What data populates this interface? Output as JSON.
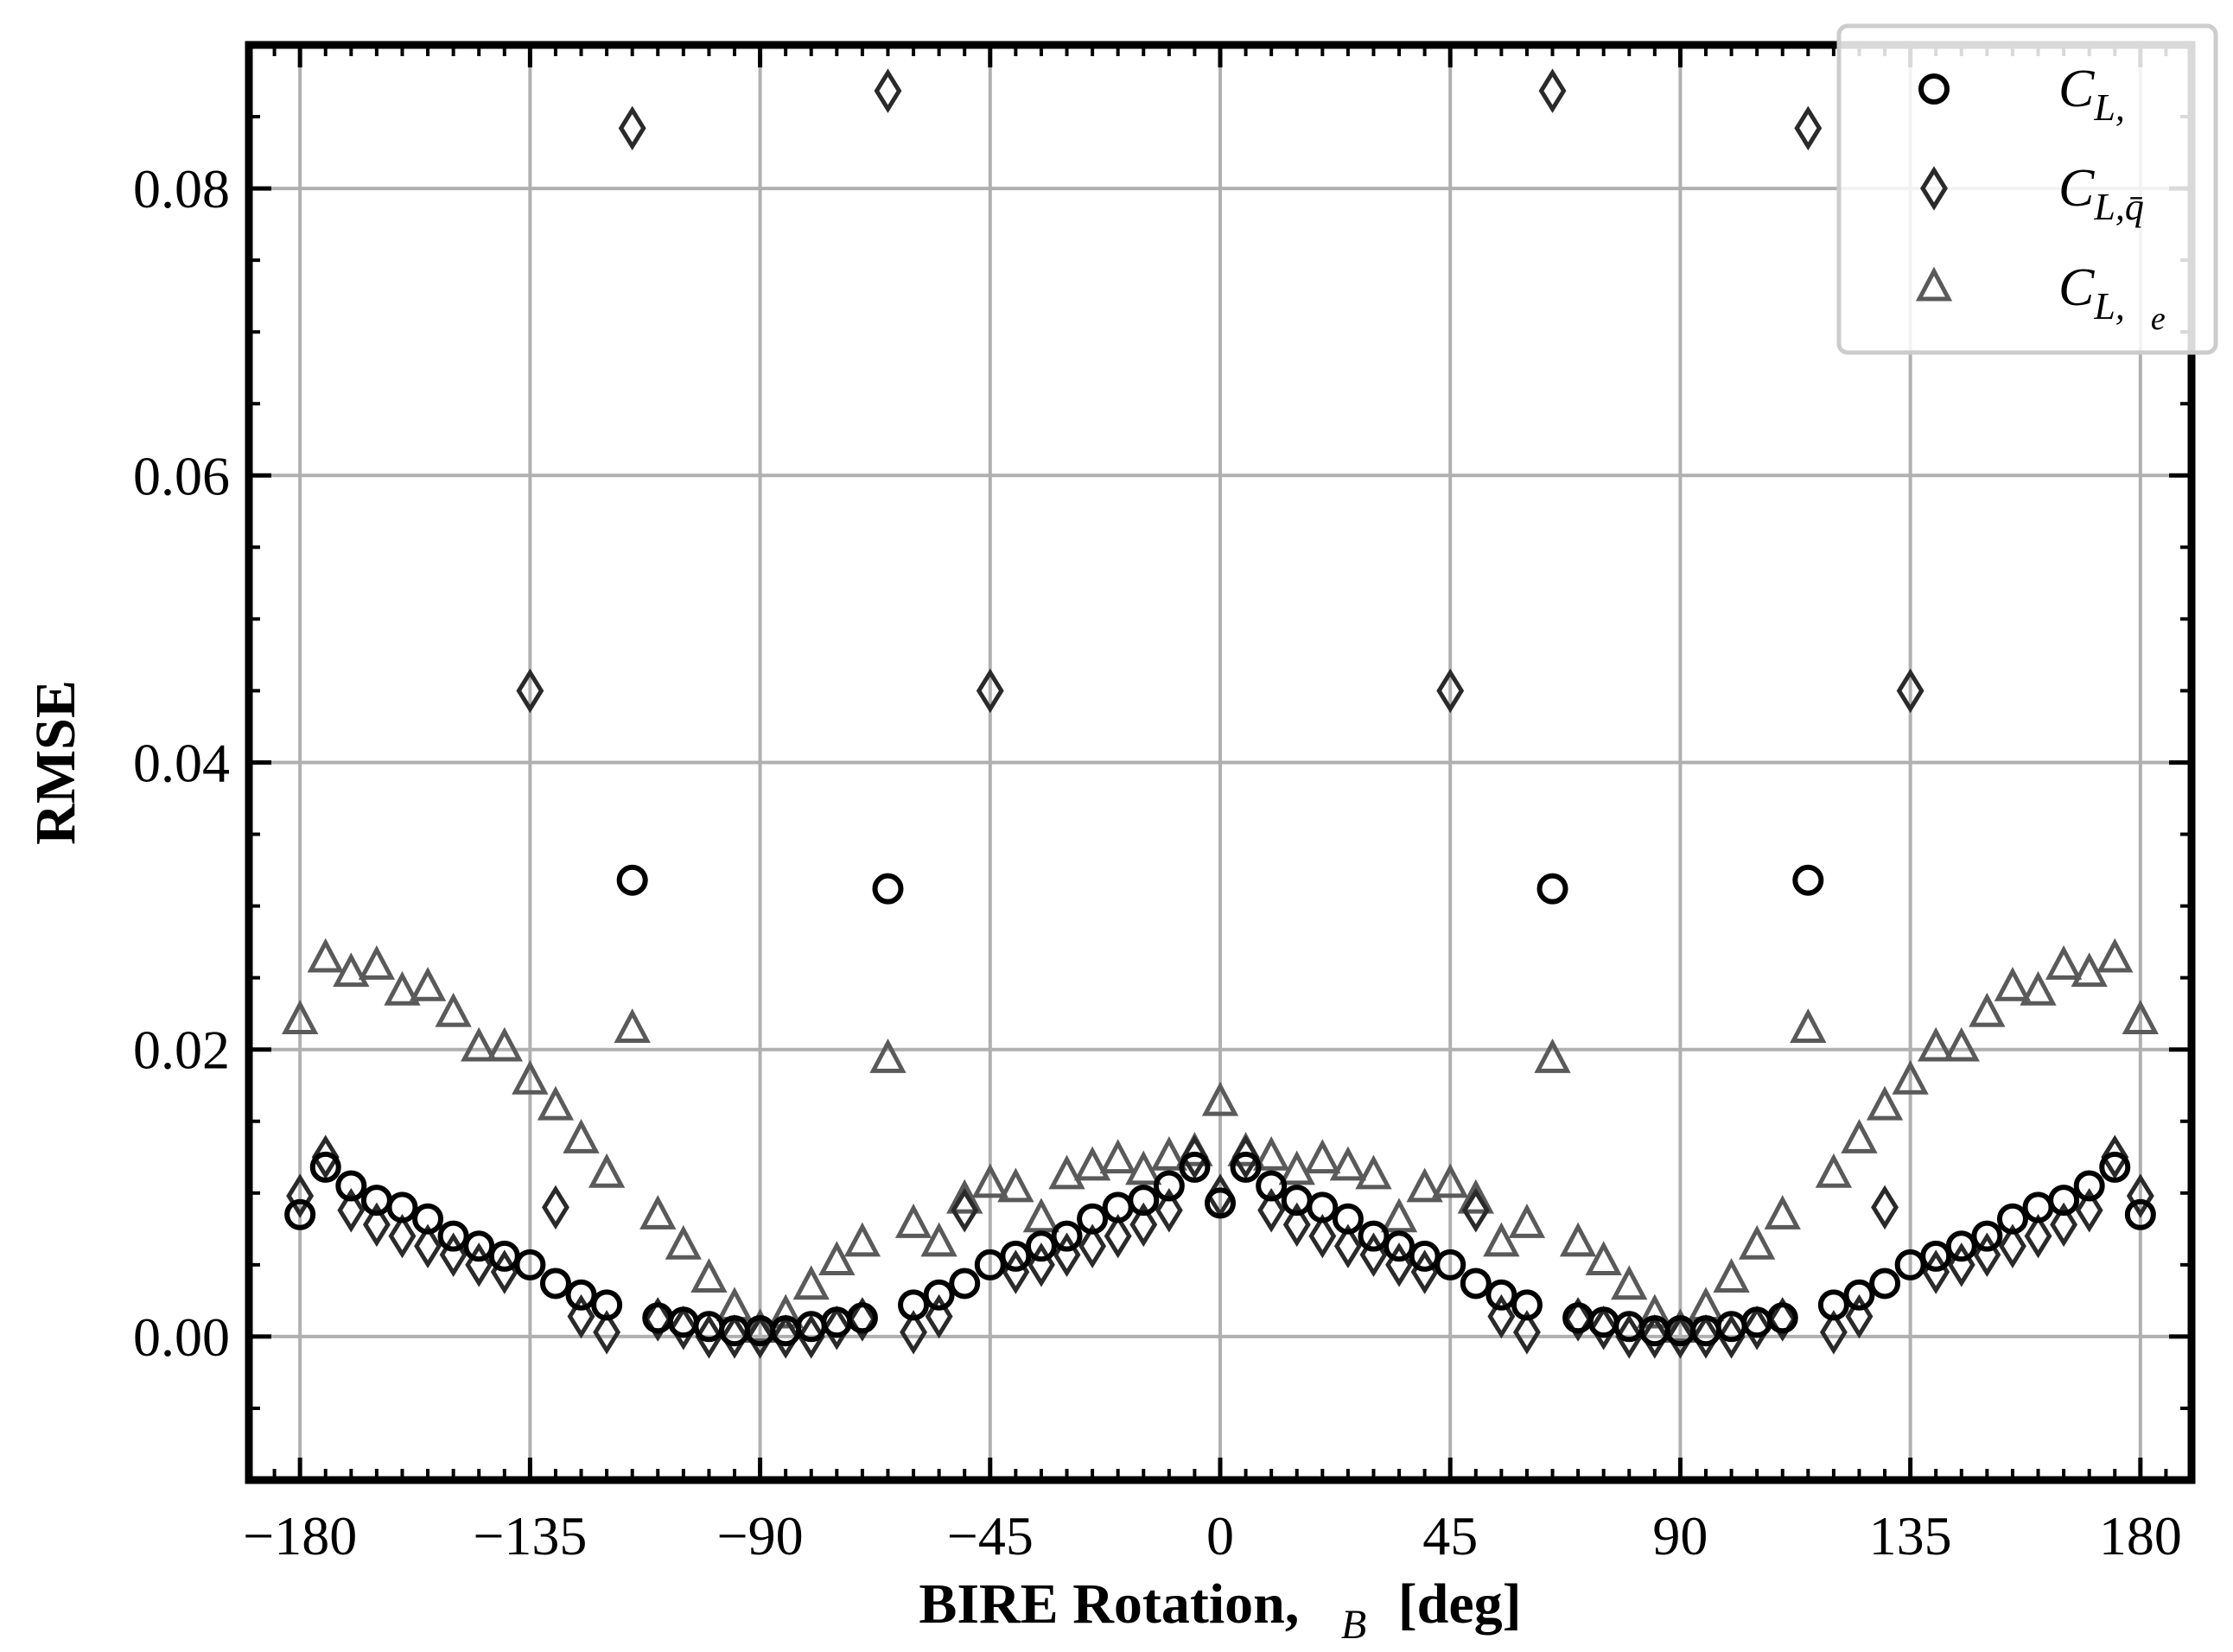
{
  "chart_data": {
    "type": "scatter",
    "xlabel": "BIRE Rotation,  B [deg]",
    "xlabel_prefix": "BIRE Rotation,",
    "xlabel_subscript": "B",
    "xlabel_suffix": "[deg]",
    "ylabel": "RMSE",
    "xlim": [
      -190,
      190
    ],
    "ylim": [
      -0.01,
      0.09
    ],
    "xticks": [
      -180,
      -135,
      -90,
      -45,
      0,
      45,
      90,
      135,
      180
    ],
    "xtick_labels": [
      "−180",
      "−135",
      "−90",
      "−45",
      "0",
      "45",
      "90",
      "135",
      "180"
    ],
    "yticks": [
      0.0,
      0.02,
      0.04,
      0.06,
      0.08
    ],
    "ytick_labels": [
      "0.00",
      "0.02",
      "0.04",
      "0.06",
      "0.08"
    ],
    "grid": true,
    "legend_position": "top-right",
    "series": [
      {
        "name": "C_L,",
        "legend_main": "C",
        "legend_sub": "L,",
        "marker": "circle",
        "color": "#000000",
        "points": [
          [
            -180,
            0.0085
          ],
          [
            -175,
            0.0118
          ],
          [
            -170,
            0.0105
          ],
          [
            -165,
            0.0095
          ],
          [
            -160,
            0.009
          ],
          [
            -155,
            0.0082
          ],
          [
            -150,
            0.007
          ],
          [
            -145,
            0.0063
          ],
          [
            -140,
            0.0056
          ],
          [
            -135,
            0.005
          ],
          [
            -130,
            0.0037
          ],
          [
            -125,
            0.0029
          ],
          [
            -120,
            0.0022
          ],
          [
            -115,
            0.0318
          ],
          [
            -110,
            0.0013
          ],
          [
            -105,
            0.001
          ],
          [
            -100,
            0.0007
          ],
          [
            -95,
            0.0004
          ],
          [
            -90,
            0.0004
          ],
          [
            -85,
            0.0004
          ],
          [
            -80,
            0.0007
          ],
          [
            -75,
            0.001
          ],
          [
            -70,
            0.0013
          ],
          [
            -65,
            0.0312
          ],
          [
            -60,
            0.0022
          ],
          [
            -55,
            0.0029
          ],
          [
            -50,
            0.0037
          ],
          [
            -45,
            0.005
          ],
          [
            -40,
            0.0056
          ],
          [
            -35,
            0.0063
          ],
          [
            -30,
            0.007
          ],
          [
            -25,
            0.0082
          ],
          [
            -20,
            0.009
          ],
          [
            -15,
            0.0095
          ],
          [
            -10,
            0.0105
          ],
          [
            -5,
            0.0118
          ],
          [
            0,
            0.0093
          ],
          [
            5,
            0.0118
          ],
          [
            10,
            0.0105
          ],
          [
            15,
            0.0095
          ],
          [
            20,
            0.009
          ],
          [
            25,
            0.0082
          ],
          [
            30,
            0.007
          ],
          [
            35,
            0.0063
          ],
          [
            40,
            0.0056
          ],
          [
            45,
            0.005
          ],
          [
            50,
            0.0037
          ],
          [
            55,
            0.0029
          ],
          [
            60,
            0.0022
          ],
          [
            65,
            0.0312
          ],
          [
            70,
            0.0013
          ],
          [
            75,
            0.001
          ],
          [
            80,
            0.0007
          ],
          [
            85,
            0.0004
          ],
          [
            90,
            0.0004
          ],
          [
            95,
            0.0004
          ],
          [
            100,
            0.0007
          ],
          [
            105,
            0.001
          ],
          [
            110,
            0.0013
          ],
          [
            115,
            0.0318
          ],
          [
            120,
            0.0022
          ],
          [
            125,
            0.0029
          ],
          [
            130,
            0.0037
          ],
          [
            135,
            0.005
          ],
          [
            140,
            0.0056
          ],
          [
            145,
            0.0063
          ],
          [
            150,
            0.007
          ],
          [
            155,
            0.0082
          ],
          [
            160,
            0.009
          ],
          [
            165,
            0.0095
          ],
          [
            170,
            0.0105
          ],
          [
            175,
            0.0118
          ],
          [
            180,
            0.0085
          ]
        ]
      },
      {
        "name": "C_L,q̄",
        "legend_main": "C",
        "legend_sub": "L,q̄",
        "marker": "diamond",
        "color": "#2a2a2a",
        "points": [
          [
            -180,
            0.0098
          ],
          [
            -175,
            0.0125
          ],
          [
            -170,
            0.0088
          ],
          [
            -165,
            0.0078
          ],
          [
            -160,
            0.007
          ],
          [
            -155,
            0.0063
          ],
          [
            -150,
            0.0057
          ],
          [
            -145,
            0.005
          ],
          [
            -140,
            0.0045
          ],
          [
            -135,
            0.045
          ],
          [
            -130,
            0.009
          ],
          [
            -125,
            0.0014
          ],
          [
            -120,
            0.0003
          ],
          [
            -115,
            0.0842
          ],
          [
            -110,
            0.0012
          ],
          [
            -105,
            0.0006
          ],
          [
            -100,
            0.0
          ],
          [
            -95,
            0.0
          ],
          [
            -90,
            0.0
          ],
          [
            -85,
            0.0
          ],
          [
            -80,
            0.0
          ],
          [
            -75,
            0.0006
          ],
          [
            -70,
            0.0012
          ],
          [
            -65,
            0.0868
          ],
          [
            -60,
            0.0003
          ],
          [
            -55,
            0.0014
          ],
          [
            -50,
            0.0088
          ],
          [
            -45,
            0.045
          ],
          [
            -40,
            0.0045
          ],
          [
            -35,
            0.005
          ],
          [
            -30,
            0.0057
          ],
          [
            -25,
            0.0063
          ],
          [
            -20,
            0.007
          ],
          [
            -15,
            0.0078
          ],
          [
            -10,
            0.0088
          ],
          [
            -5,
            0.0125
          ],
          [
            0,
            0.0098
          ],
          [
            5,
            0.0125
          ],
          [
            10,
            0.0088
          ],
          [
            15,
            0.0078
          ],
          [
            20,
            0.007
          ],
          [
            25,
            0.0063
          ],
          [
            30,
            0.0057
          ],
          [
            35,
            0.005
          ],
          [
            40,
            0.0045
          ],
          [
            45,
            0.045
          ],
          [
            50,
            0.0088
          ],
          [
            55,
            0.0014
          ],
          [
            60,
            0.0003
          ],
          [
            65,
            0.0868
          ],
          [
            70,
            0.0012
          ],
          [
            75,
            0.0006
          ],
          [
            80,
            0.0
          ],
          [
            85,
            0.0
          ],
          [
            90,
            0.0
          ],
          [
            95,
            0.0
          ],
          [
            100,
            0.0
          ],
          [
            105,
            0.0006
          ],
          [
            110,
            0.0012
          ],
          [
            115,
            0.0842
          ],
          [
            120,
            0.0003
          ],
          [
            125,
            0.0014
          ],
          [
            130,
            0.009
          ],
          [
            135,
            0.045
          ],
          [
            140,
            0.0045
          ],
          [
            145,
            0.005
          ],
          [
            150,
            0.0057
          ],
          [
            155,
            0.0063
          ],
          [
            160,
            0.007
          ],
          [
            165,
            0.0078
          ],
          [
            170,
            0.0088
          ],
          [
            175,
            0.0125
          ],
          [
            180,
            0.0098
          ]
        ]
      },
      {
        "name": "C_L, e",
        "legend_main": "C",
        "legend_sub": "L,",
        "legend_subsub": "e",
        "marker": "triangle",
        "color": "#5a5a5a",
        "points": [
          [
            -180,
            0.022
          ],
          [
            -175,
            0.0263
          ],
          [
            -170,
            0.0253
          ],
          [
            -165,
            0.0258
          ],
          [
            -160,
            0.024
          ],
          [
            -155,
            0.0243
          ],
          [
            -150,
            0.0225
          ],
          [
            -145,
            0.0201
          ],
          [
            -140,
            0.0201
          ],
          [
            -135,
            0.0178
          ],
          [
            -130,
            0.016
          ],
          [
            -125,
            0.0137
          ],
          [
            -120,
            0.0113
          ],
          [
            -115,
            0.0214
          ],
          [
            -110,
            0.0084
          ],
          [
            -105,
            0.0063
          ],
          [
            -100,
            0.004
          ],
          [
            -95,
            0.002
          ],
          [
            -90,
            0.0005
          ],
          [
            -85,
            0.0015
          ],
          [
            -80,
            0.0035
          ],
          [
            -75,
            0.0052
          ],
          [
            -70,
            0.0065
          ],
          [
            -65,
            0.0193
          ],
          [
            -60,
            0.0078
          ],
          [
            -55,
            0.0065
          ],
          [
            -50,
            0.0095
          ],
          [
            -45,
            0.0106
          ],
          [
            -40,
            0.0103
          ],
          [
            -35,
            0.0082
          ],
          [
            -30,
            0.0112
          ],
          [
            -25,
            0.0118
          ],
          [
            -20,
            0.0123
          ],
          [
            -15,
            0.0115
          ],
          [
            -10,
            0.0125
          ],
          [
            -5,
            0.0128
          ],
          [
            0,
            0.0163
          ],
          [
            5,
            0.0128
          ],
          [
            10,
            0.0125
          ],
          [
            15,
            0.0115
          ],
          [
            20,
            0.0123
          ],
          [
            25,
            0.0118
          ],
          [
            30,
            0.0112
          ],
          [
            35,
            0.0082
          ],
          [
            40,
            0.0103
          ],
          [
            45,
            0.0106
          ],
          [
            50,
            0.0095
          ],
          [
            55,
            0.0065
          ],
          [
            60,
            0.0078
          ],
          [
            65,
            0.0193
          ],
          [
            70,
            0.0065
          ],
          [
            75,
            0.0052
          ],
          [
            80,
            0.0035
          ],
          [
            85,
            0.0015
          ],
          [
            90,
            0.0005
          ],
          [
            95,
            0.002
          ],
          [
            100,
            0.004
          ],
          [
            105,
            0.0063
          ],
          [
            110,
            0.0084
          ],
          [
            115,
            0.0214
          ],
          [
            120,
            0.0113
          ],
          [
            125,
            0.0137
          ],
          [
            130,
            0.016
          ],
          [
            135,
            0.0178
          ],
          [
            140,
            0.0201
          ],
          [
            145,
            0.0201
          ],
          [
            150,
            0.0225
          ],
          [
            155,
            0.0243
          ],
          [
            160,
            0.024
          ],
          [
            165,
            0.0258
          ],
          [
            170,
            0.0253
          ],
          [
            175,
            0.0263
          ],
          [
            180,
            0.022
          ]
        ]
      }
    ]
  }
}
